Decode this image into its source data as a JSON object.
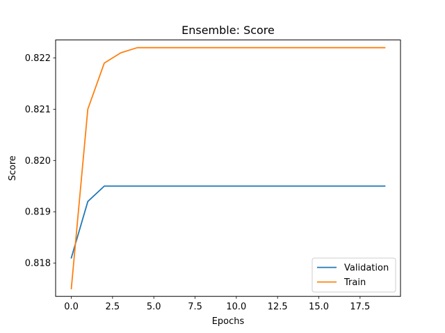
{
  "chart_data": {
    "type": "line",
    "title": "Ensemble: Score",
    "xlabel": "Epochs",
    "ylabel": "Score",
    "x": [
      0,
      1,
      2,
      3,
      4,
      5,
      6,
      7,
      8,
      9,
      10,
      11,
      12,
      13,
      14,
      15,
      16,
      17,
      18,
      19
    ],
    "xlim": [
      -0.95,
      19.95
    ],
    "ylim": [
      0.81735,
      0.82235
    ],
    "xticks": [
      0,
      2.5,
      5,
      7.5,
      10,
      12.5,
      15,
      17.5
    ],
    "xtick_labels": [
      "0.0",
      "2.5",
      "5.0",
      "7.5",
      "10.0",
      "12.5",
      "15.0",
      "17.5"
    ],
    "yticks": [
      0.818,
      0.819,
      0.82,
      0.821,
      0.822
    ],
    "ytick_labels": [
      "0.818",
      "0.819",
      "0.820",
      "0.821",
      "0.822"
    ],
    "grid": false,
    "legend_position": "lower-right",
    "series": [
      {
        "name": "Validation",
        "color": "#1f77b4",
        "values": [
          0.8181,
          0.8192,
          0.8195,
          0.8195,
          0.8195,
          0.8195,
          0.8195,
          0.8195,
          0.8195,
          0.8195,
          0.8195,
          0.8195,
          0.8195,
          0.8195,
          0.8195,
          0.8195,
          0.8195,
          0.8195,
          0.8195,
          0.8195
        ]
      },
      {
        "name": "Train",
        "color": "#ff7f0e",
        "values": [
          0.8175,
          0.821,
          0.8219,
          0.8221,
          0.8222,
          0.8222,
          0.8222,
          0.8222,
          0.8222,
          0.8222,
          0.8222,
          0.8222,
          0.8222,
          0.8222,
          0.8222,
          0.8222,
          0.8222,
          0.8222,
          0.8222,
          0.8222
        ]
      }
    ]
  }
}
